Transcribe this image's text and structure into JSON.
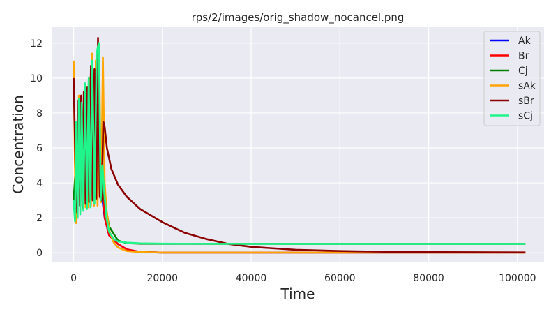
{
  "chart_data": {
    "type": "line",
    "title": "rps/2/images/orig_shadow_nocancel.png",
    "xlabel": "Time",
    "ylabel": "Concentration",
    "xlim": [
      -4800,
      106000
    ],
    "ylim": [
      -0.55,
      12.95
    ],
    "xticks": [
      0,
      20000,
      40000,
      60000,
      80000,
      100000
    ],
    "yticks": [
      0,
      2,
      4,
      6,
      8,
      10,
      12
    ],
    "grid": true,
    "legend_position": "top-right",
    "series": [
      {
        "name": "Ak",
        "color": "#0000ff",
        "points": [
          [
            0,
            3
          ],
          [
            1000,
            6
          ],
          [
            2000,
            4
          ],
          [
            3000,
            7
          ],
          [
            4000,
            5
          ],
          [
            5000,
            8
          ],
          [
            6000,
            4
          ],
          [
            7000,
            2
          ],
          [
            8000,
            1
          ],
          [
            10000,
            0.5
          ],
          [
            12000,
            0.2
          ],
          [
            15000,
            0.05
          ],
          [
            20000,
            0.01
          ],
          [
            30000,
            0.01
          ],
          [
            60000,
            0.01
          ],
          [
            101800,
            0.01
          ]
        ]
      },
      {
        "name": "Br",
        "color": "#ff0000",
        "points": [
          [
            0,
            3
          ],
          [
            1000,
            5
          ],
          [
            2000,
            7
          ],
          [
            3000,
            4
          ],
          [
            4000,
            8
          ],
          [
            5000,
            5
          ],
          [
            6000,
            6
          ],
          [
            7000,
            2
          ],
          [
            8000,
            1
          ],
          [
            10000,
            0.5
          ],
          [
            12000,
            0.2
          ],
          [
            15000,
            0.05
          ],
          [
            20000,
            0.01
          ],
          [
            30000,
            0.01
          ],
          [
            60000,
            0.01
          ],
          [
            101800,
            0.01
          ]
        ]
      },
      {
        "name": "Cj",
        "color": "#008000",
        "points": [
          [
            0,
            3
          ],
          [
            1000,
            7
          ],
          [
            2000,
            5
          ],
          [
            3000,
            8
          ],
          [
            4000,
            6
          ],
          [
            5000,
            9
          ],
          [
            6000,
            7
          ],
          [
            7000,
            3
          ],
          [
            8000,
            1.5
          ],
          [
            10000,
            0.7
          ],
          [
            12000,
            0.55
          ],
          [
            15000,
            0.52
          ],
          [
            20000,
            0.51
          ],
          [
            30000,
            0.51
          ],
          [
            60000,
            0.51
          ],
          [
            101800,
            0.51
          ]
        ]
      },
      {
        "name": "sAk",
        "color": "#ffa500",
        "points": [
          [
            0,
            11
          ],
          [
            300,
            5
          ],
          [
            600,
            1.7
          ],
          [
            900,
            5
          ],
          [
            1200,
            9
          ],
          [
            1500,
            3
          ],
          [
            1800,
            8
          ],
          [
            2100,
            2.5
          ],
          [
            2400,
            9
          ],
          [
            2700,
            2.6
          ],
          [
            3000,
            9.5
          ],
          [
            3300,
            2.6
          ],
          [
            3600,
            10
          ],
          [
            3900,
            2.7
          ],
          [
            4200,
            11.4
          ],
          [
            4600,
            2.7
          ],
          [
            5000,
            11
          ],
          [
            5400,
            2.7
          ],
          [
            5800,
            10.5
          ],
          [
            6200,
            2.9
          ],
          [
            6600,
            11.2
          ],
          [
            7000,
            4
          ],
          [
            7400,
            2.5
          ],
          [
            8000,
            1.3
          ],
          [
            9000,
            0.6
          ],
          [
            10000,
            0.3
          ],
          [
            12000,
            0.1
          ],
          [
            15000,
            0.04
          ],
          [
            20000,
            0.01
          ],
          [
            30000,
            0.01
          ],
          [
            60000,
            0.01
          ],
          [
            101800,
            0.01
          ]
        ]
      },
      {
        "name": "sBr",
        "color": "#8b0000",
        "points": [
          [
            0,
            10
          ],
          [
            250,
            7
          ],
          [
            500,
            4
          ],
          [
            800,
            2.3
          ],
          [
            1100,
            8.7
          ],
          [
            1400,
            2.7
          ],
          [
            1700,
            9
          ],
          [
            2000,
            2.6
          ],
          [
            2300,
            9.2
          ],
          [
            2700,
            2.8
          ],
          [
            3100,
            9.5
          ],
          [
            3500,
            2.9
          ],
          [
            3900,
            10.7
          ],
          [
            4300,
            3
          ],
          [
            4700,
            10.5
          ],
          [
            5100,
            3.1
          ],
          [
            5500,
            12.3
          ],
          [
            5900,
            3.2
          ],
          [
            6300,
            3
          ],
          [
            6700,
            7.5
          ],
          [
            7000,
            7.2
          ],
          [
            7500,
            6
          ],
          [
            8500,
            4.8
          ],
          [
            10000,
            3.9
          ],
          [
            12000,
            3.2
          ],
          [
            15000,
            2.5
          ],
          [
            20000,
            1.75
          ],
          [
            25000,
            1.15
          ],
          [
            30000,
            0.78
          ],
          [
            35000,
            0.5
          ],
          [
            40000,
            0.34
          ],
          [
            50000,
            0.17
          ],
          [
            60000,
            0.1
          ],
          [
            70000,
            0.06
          ],
          [
            80000,
            0.04
          ],
          [
            90000,
            0.03
          ],
          [
            101800,
            0.02
          ]
        ]
      },
      {
        "name": "sCj",
        "color": "#1ff58a",
        "points": [
          [
            0,
            3
          ],
          [
            300,
            1.8
          ],
          [
            600,
            7.5
          ],
          [
            900,
            2
          ],
          [
            1200,
            8.8
          ],
          [
            1500,
            2.2
          ],
          [
            1800,
            8.6
          ],
          [
            2200,
            2.4
          ],
          [
            2600,
            9.7
          ],
          [
            3000,
            2.5
          ],
          [
            3400,
            10
          ],
          [
            3800,
            2.6
          ],
          [
            4200,
            11
          ],
          [
            4700,
            2.8
          ],
          [
            5200,
            11.5
          ],
          [
            5700,
            12
          ],
          [
            6100,
            3
          ],
          [
            6500,
            5
          ],
          [
            6900,
            3.5
          ],
          [
            7400,
            2
          ],
          [
            8000,
            1.2
          ],
          [
            9000,
            0.8
          ],
          [
            10000,
            0.65
          ],
          [
            12000,
            0.58
          ],
          [
            15000,
            0.54
          ],
          [
            20000,
            0.52
          ],
          [
            40000,
            0.51
          ],
          [
            70000,
            0.51
          ],
          [
            101800,
            0.51
          ]
        ]
      }
    ]
  }
}
